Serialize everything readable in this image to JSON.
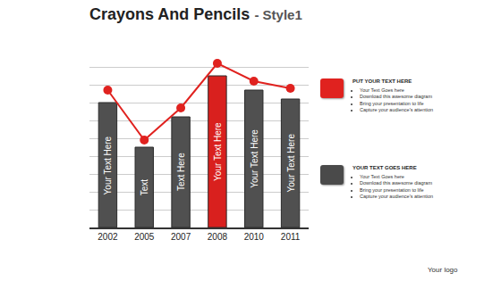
{
  "chart_data": {
    "type": "bar",
    "title": "Crayons And Pencils",
    "subtitle": "- Style1",
    "categories": [
      "2002",
      "2005",
      "2007",
      "2008",
      "2010",
      "2011"
    ],
    "series": [
      {
        "type": "bar",
        "values": [
          70,
          45,
          62,
          85,
          77,
          72
        ],
        "colors": [
          "#505050",
          "#505050",
          "#505050",
          "#d9201e",
          "#505050",
          "#505050"
        ]
      },
      {
        "type": "line",
        "color": "#e0221f",
        "marker": "circle",
        "values": [
          77,
          49,
          67,
          92,
          82,
          78
        ]
      }
    ],
    "annotations": [
      {
        "category": "2002",
        "text": "Your Text Here"
      },
      {
        "category": "2005",
        "text": "Text"
      },
      {
        "category": "2007",
        "text": "Text Here"
      },
      {
        "category": "2008",
        "text": "Your Text Here"
      },
      {
        "category": "2010",
        "text": "Your Text Here"
      },
      {
        "category": "2011",
        "text": "Your Text Here"
      }
    ],
    "ylim": [
      0,
      100
    ],
    "yticks": [
      0,
      10,
      20,
      30,
      40,
      50,
      60,
      70,
      80,
      90,
      100
    ],
    "grid": true,
    "tick_labels": "x"
  },
  "side_panels": [
    {
      "heading": "PUT YOUR TEXT HERE",
      "color": "#e0221f",
      "bullets": [
        "Your Text Goes here",
        "Download this awesome diagram",
        "Bring your presentation to life",
        "Capture your audience's attention"
      ]
    },
    {
      "heading": "YOUR TEXT GOES HERE",
      "color": "#4a4a4a",
      "bullets": [
        "Your Text Goes here",
        "Download this awesome diagram",
        "Bring your presentation to life",
        "Capture your audience's attention"
      ]
    }
  ],
  "logo": "Your logo"
}
